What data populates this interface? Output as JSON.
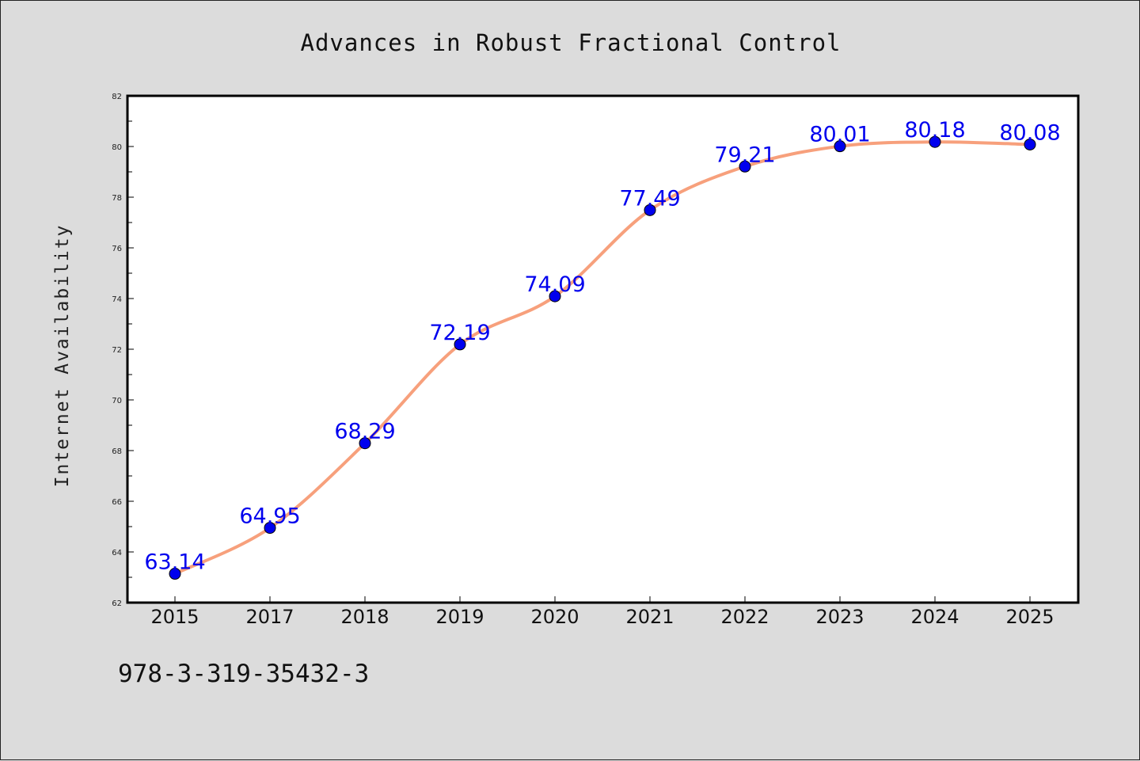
{
  "footer": {
    "code": "978-3-319-35432-3"
  },
  "chart_data": {
    "type": "line",
    "title": "Advances in Robust Fractional Control",
    "xlabel": "",
    "ylabel": "Internet Availability",
    "categories": [
      "2015",
      "2017",
      "2018",
      "2019",
      "2020",
      "2021",
      "2022",
      "2023",
      "2024",
      "2025"
    ],
    "series": [
      {
        "values": [
          63.14,
          64.95,
          68.29,
          72.19,
          74.09,
          77.49,
          79.21,
          80.01,
          80.18,
          80.08
        ],
        "labels": [
          "63.14",
          "64.95",
          "68.29",
          "72.19",
          "74.09",
          "77.49",
          "79.21",
          "80.01",
          "80.18",
          "80.08"
        ],
        "line_color": "#f7a07c",
        "marker_color": "#0000ee"
      }
    ],
    "ylim": [
      62,
      82
    ],
    "yticks": [
      "62",
      "64",
      "66",
      "68",
      "70",
      "72",
      "74",
      "76",
      "78",
      "80",
      "82"
    ],
    "grid": false,
    "legend": "none"
  }
}
